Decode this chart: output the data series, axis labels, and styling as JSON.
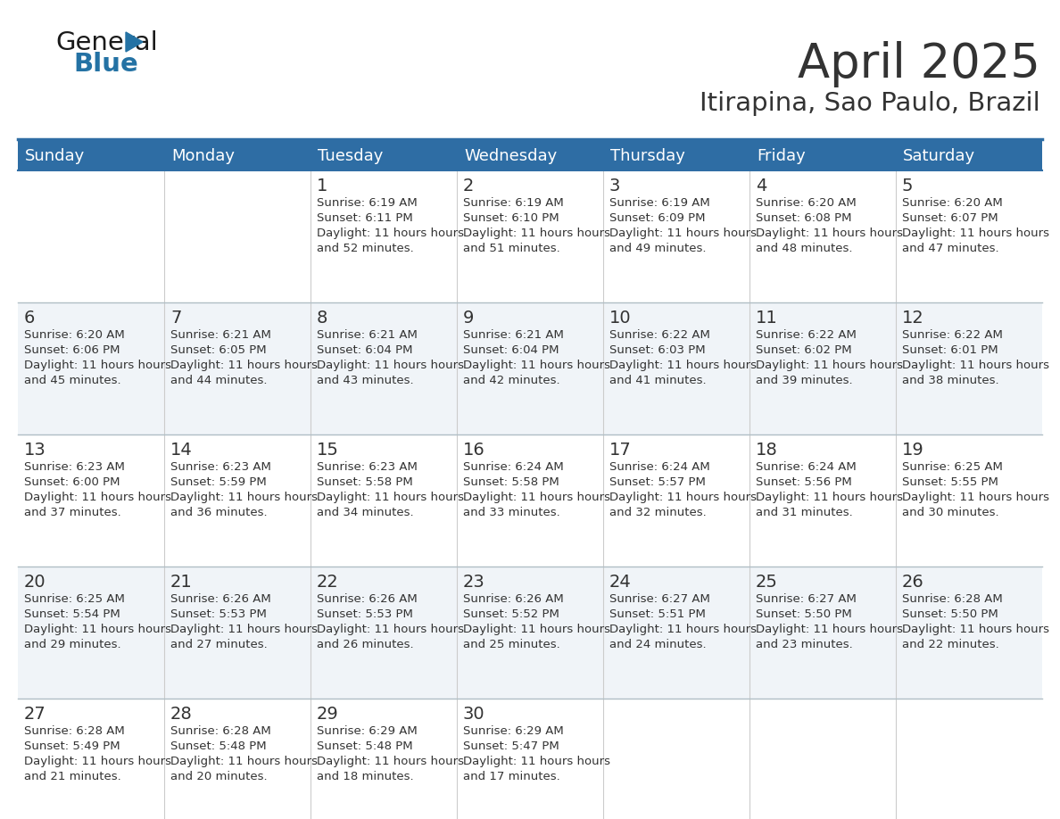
{
  "title": "April 2025",
  "subtitle": "Itirapina, Sao Paulo, Brazil",
  "header_bg_color": "#2E6DA4",
  "header_text_color": "#FFFFFF",
  "border_color": "#2E6DA4",
  "text_color": "#333333",
  "day_headers": [
    "Sunday",
    "Monday",
    "Tuesday",
    "Wednesday",
    "Thursday",
    "Friday",
    "Saturday"
  ],
  "weeks": [
    [
      {
        "day": "",
        "sunrise": "",
        "sunset": "",
        "daylight": ""
      },
      {
        "day": "",
        "sunrise": "",
        "sunset": "",
        "daylight": ""
      },
      {
        "day": "1",
        "sunrise": "6:19 AM",
        "sunset": "6:11 PM",
        "daylight": "11 hours and 52 minutes."
      },
      {
        "day": "2",
        "sunrise": "6:19 AM",
        "sunset": "6:10 PM",
        "daylight": "11 hours and 51 minutes."
      },
      {
        "day": "3",
        "sunrise": "6:19 AM",
        "sunset": "6:09 PM",
        "daylight": "11 hours and 49 minutes."
      },
      {
        "day": "4",
        "sunrise": "6:20 AM",
        "sunset": "6:08 PM",
        "daylight": "11 hours and 48 minutes."
      },
      {
        "day": "5",
        "sunrise": "6:20 AM",
        "sunset": "6:07 PM",
        "daylight": "11 hours and 47 minutes."
      }
    ],
    [
      {
        "day": "6",
        "sunrise": "6:20 AM",
        "sunset": "6:06 PM",
        "daylight": "11 hours and 45 minutes."
      },
      {
        "day": "7",
        "sunrise": "6:21 AM",
        "sunset": "6:05 PM",
        "daylight": "11 hours and 44 minutes."
      },
      {
        "day": "8",
        "sunrise": "6:21 AM",
        "sunset": "6:04 PM",
        "daylight": "11 hours and 43 minutes."
      },
      {
        "day": "9",
        "sunrise": "6:21 AM",
        "sunset": "6:04 PM",
        "daylight": "11 hours and 42 minutes."
      },
      {
        "day": "10",
        "sunrise": "6:22 AM",
        "sunset": "6:03 PM",
        "daylight": "11 hours and 41 minutes."
      },
      {
        "day": "11",
        "sunrise": "6:22 AM",
        "sunset": "6:02 PM",
        "daylight": "11 hours and 39 minutes."
      },
      {
        "day": "12",
        "sunrise": "6:22 AM",
        "sunset": "6:01 PM",
        "daylight": "11 hours and 38 minutes."
      }
    ],
    [
      {
        "day": "13",
        "sunrise": "6:23 AM",
        "sunset": "6:00 PM",
        "daylight": "11 hours and 37 minutes."
      },
      {
        "day": "14",
        "sunrise": "6:23 AM",
        "sunset": "5:59 PM",
        "daylight": "11 hours and 36 minutes."
      },
      {
        "day": "15",
        "sunrise": "6:23 AM",
        "sunset": "5:58 PM",
        "daylight": "11 hours and 34 minutes."
      },
      {
        "day": "16",
        "sunrise": "6:24 AM",
        "sunset": "5:58 PM",
        "daylight": "11 hours and 33 minutes."
      },
      {
        "day": "17",
        "sunrise": "6:24 AM",
        "sunset": "5:57 PM",
        "daylight": "11 hours and 32 minutes."
      },
      {
        "day": "18",
        "sunrise": "6:24 AM",
        "sunset": "5:56 PM",
        "daylight": "11 hours and 31 minutes."
      },
      {
        "day": "19",
        "sunrise": "6:25 AM",
        "sunset": "5:55 PM",
        "daylight": "11 hours and 30 minutes."
      }
    ],
    [
      {
        "day": "20",
        "sunrise": "6:25 AM",
        "sunset": "5:54 PM",
        "daylight": "11 hours and 29 minutes."
      },
      {
        "day": "21",
        "sunrise": "6:26 AM",
        "sunset": "5:53 PM",
        "daylight": "11 hours and 27 minutes."
      },
      {
        "day": "22",
        "sunrise": "6:26 AM",
        "sunset": "5:53 PM",
        "daylight": "11 hours and 26 minutes."
      },
      {
        "day": "23",
        "sunrise": "6:26 AM",
        "sunset": "5:52 PM",
        "daylight": "11 hours and 25 minutes."
      },
      {
        "day": "24",
        "sunrise": "6:27 AM",
        "sunset": "5:51 PM",
        "daylight": "11 hours and 24 minutes."
      },
      {
        "day": "25",
        "sunrise": "6:27 AM",
        "sunset": "5:50 PM",
        "daylight": "11 hours and 23 minutes."
      },
      {
        "day": "26",
        "sunrise": "6:28 AM",
        "sunset": "5:50 PM",
        "daylight": "11 hours and 22 minutes."
      }
    ],
    [
      {
        "day": "27",
        "sunrise": "6:28 AM",
        "sunset": "5:49 PM",
        "daylight": "11 hours and 21 minutes."
      },
      {
        "day": "28",
        "sunrise": "6:28 AM",
        "sunset": "5:48 PM",
        "daylight": "11 hours and 20 minutes."
      },
      {
        "day": "29",
        "sunrise": "6:29 AM",
        "sunset": "5:48 PM",
        "daylight": "11 hours and 18 minutes."
      },
      {
        "day": "30",
        "sunrise": "6:29 AM",
        "sunset": "5:47 PM",
        "daylight": "11 hours and 17 minutes."
      },
      {
        "day": "",
        "sunrise": "",
        "sunset": "",
        "daylight": ""
      },
      {
        "day": "",
        "sunrise": "",
        "sunset": "",
        "daylight": ""
      },
      {
        "day": "",
        "sunrise": "",
        "sunset": "",
        "daylight": ""
      }
    ]
  ],
  "logo_color_general": "#1a1a1a",
  "logo_color_blue": "#2472A4",
  "logo_triangle_color": "#2472A4",
  "fig_width": 11.88,
  "fig_height": 9.18,
  "dpi": 100
}
